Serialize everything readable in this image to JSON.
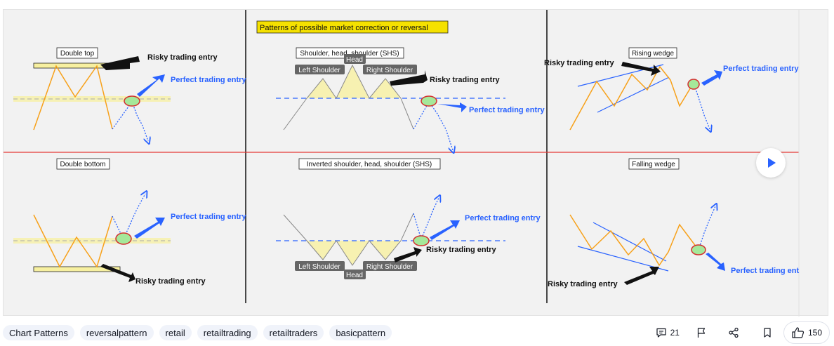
{
  "diagram": {
    "banner": "Patterns of possible market correction or reversal",
    "panels": {
      "double_top": {
        "title": "Double top",
        "risky": "Risky trading entry",
        "perfect": "Perfect trading entry"
      },
      "shs": {
        "title": "Shoulder, head, shoulder (SHS)",
        "left": "Left Shoulder",
        "head": "Head",
        "right": "Right Shoulder",
        "risky": "Risky trading entry",
        "perfect": "Perfect trading entry"
      },
      "rising_wedge": {
        "title": "Rising wedge",
        "risky": "Risky trading entry",
        "perfect": "Perfect trading entry"
      },
      "double_bottom": {
        "title": "Double bottom",
        "risky": "Risky trading entry",
        "perfect": "Perfect trading entry"
      },
      "inverted_shs": {
        "title": "Inverted  shoulder, head, shoulder (SHS)",
        "left": "Left Shoulder",
        "head": "Head",
        "right": "Right Shoulder",
        "risky": "Risky trading entry",
        "perfect": "Perfect trading entry"
      },
      "falling_wedge": {
        "title": "Falling wedge",
        "risky": "Risky trading entry",
        "perfect": "Perfect trading ent"
      }
    },
    "colors": {
      "price_line": "#f7a11a",
      "entry_blue": "#2962ff",
      "arrow_black": "#111111",
      "divider_red": "#e53935",
      "zone_yellow": "#f7f0a0",
      "entry_green": "#a5e89a"
    }
  },
  "tags": [
    "Chart Patterns",
    "reversalpattern",
    "retail",
    "retailtrading",
    "retailtraders",
    "basicpattern"
  ],
  "actions": {
    "comments": "21",
    "likes": "150"
  },
  "icons": [
    "play-icon",
    "comment-icon",
    "flag-icon",
    "share-icon",
    "bookmark-icon",
    "thumbs-up-icon"
  ]
}
